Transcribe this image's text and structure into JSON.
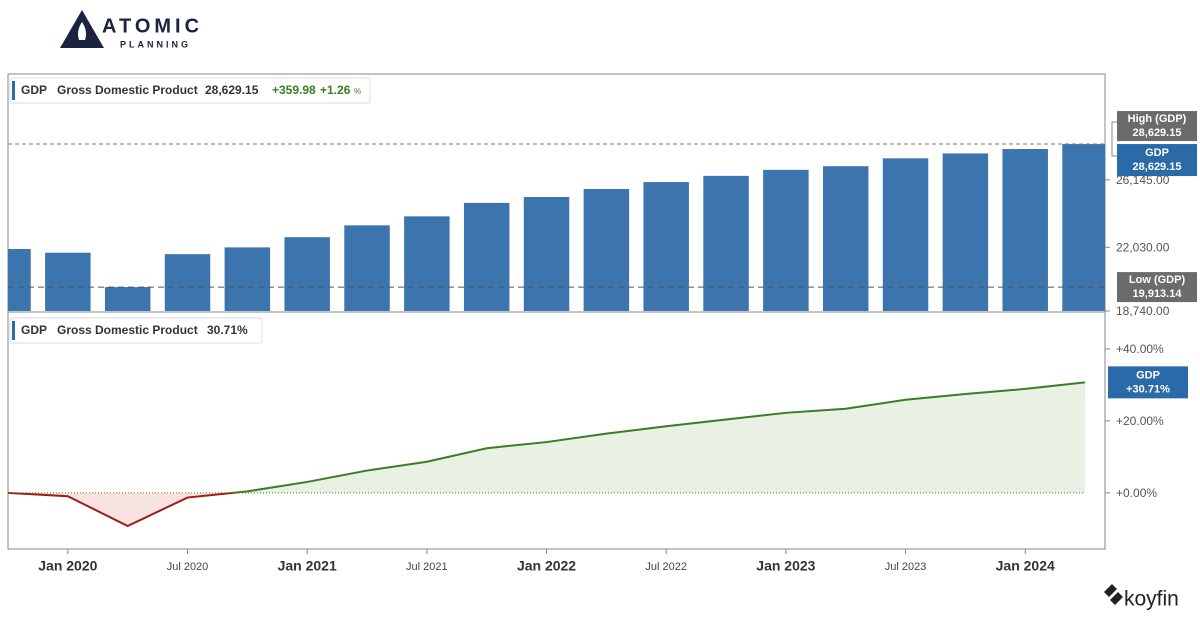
{
  "brand": {
    "name": "ATOMIC",
    "tagline": "PLANNING"
  },
  "footer_brand": "koyfin",
  "chart_data": [
    {
      "type": "bar",
      "log": true,
      "color": "#3c75ad",
      "header": {
        "ticker": "GDP",
        "name": "Gross Domestic Product",
        "value": "28,629.15",
        "change": "+359.98",
        "change_pct": "+1.26",
        "change_unit": "%"
      },
      "x": [
        "2019-10",
        "2020-01",
        "2020-04",
        "2020-07",
        "2020-10",
        "2021-01",
        "2021-04",
        "2021-07",
        "2021-10",
        "2022-01",
        "2022-04",
        "2022-07",
        "2022-10",
        "2023-01",
        "2023-04",
        "2023-07",
        "2023-10",
        "2024-01",
        "2024-04"
      ],
      "values": [
        21933,
        21728,
        19913.14,
        21648,
        22024,
        22600,
        23292,
        23829,
        24655,
        25029,
        25544,
        25995,
        26408,
        26814,
        27063,
        27610,
        27957,
        28269.17,
        28629.15
      ],
      "xlim": [
        "2019-10",
        "2024-05"
      ],
      "ylim": [
        18740,
        34200
      ],
      "yticks": [
        {
          "value": 18740,
          "label": "18,740.00"
        },
        {
          "value": 22030,
          "label": "22,030.00"
        },
        {
          "value": 26145,
          "label": "26,145.00"
        }
      ],
      "high": {
        "name": "High (GDP)",
        "value": 28629.15,
        "label": "28,629.15"
      },
      "low": {
        "name": "Low (GDP)",
        "value": 19913.14,
        "label": "19,913.14"
      },
      "last_badge": {
        "name": "GDP",
        "label": "28,629.15"
      }
    },
    {
      "type": "area",
      "color": "#3a7d23",
      "negative_color": "#a31b12",
      "header": {
        "ticker": "GDP",
        "name": "Gross Domestic Product",
        "value": "30.71%"
      },
      "x": [
        "2019-10",
        "2020-01",
        "2020-04",
        "2020-07",
        "2020-10",
        "2021-01",
        "2021-04",
        "2021-07",
        "2021-10",
        "2022-01",
        "2022-04",
        "2022-07",
        "2022-10",
        "2023-01",
        "2023-04",
        "2023-07",
        "2023-10",
        "2024-01",
        "2024-04"
      ],
      "values": [
        0,
        -0.93,
        -9.21,
        -1.3,
        0.42,
        3.04,
        6.2,
        8.65,
        12.41,
        14.12,
        16.46,
        18.52,
        20.4,
        22.25,
        23.39,
        25.88,
        27.47,
        28.89,
        30.71
      ],
      "xlim": [
        "2019-10",
        "2024-05"
      ],
      "ylim": [
        -15.6,
        48.6
      ],
      "yticks": [
        {
          "value": 0,
          "label": "+0.00%"
        },
        {
          "value": 20,
          "label": "+20.00%"
        },
        {
          "value": 40,
          "label": "+40.00%"
        }
      ],
      "xticks": [
        {
          "value": "2020-01",
          "label": "Jan 2020"
        },
        {
          "value": "2020-07",
          "label": "Jul 2020"
        },
        {
          "value": "2021-01",
          "label": "Jan 2021"
        },
        {
          "value": "2021-07",
          "label": "Jul 2021"
        },
        {
          "value": "2022-01",
          "label": "Jan 2022"
        },
        {
          "value": "2022-07",
          "label": "Jul 2022"
        },
        {
          "value": "2023-01",
          "label": "Jan 2023"
        },
        {
          "value": "2023-07",
          "label": "Jul 2023"
        },
        {
          "value": "2024-01",
          "label": "Jan 2024"
        }
      ],
      "last_badge": {
        "name": "GDP",
        "label": "+30.71%"
      }
    }
  ]
}
